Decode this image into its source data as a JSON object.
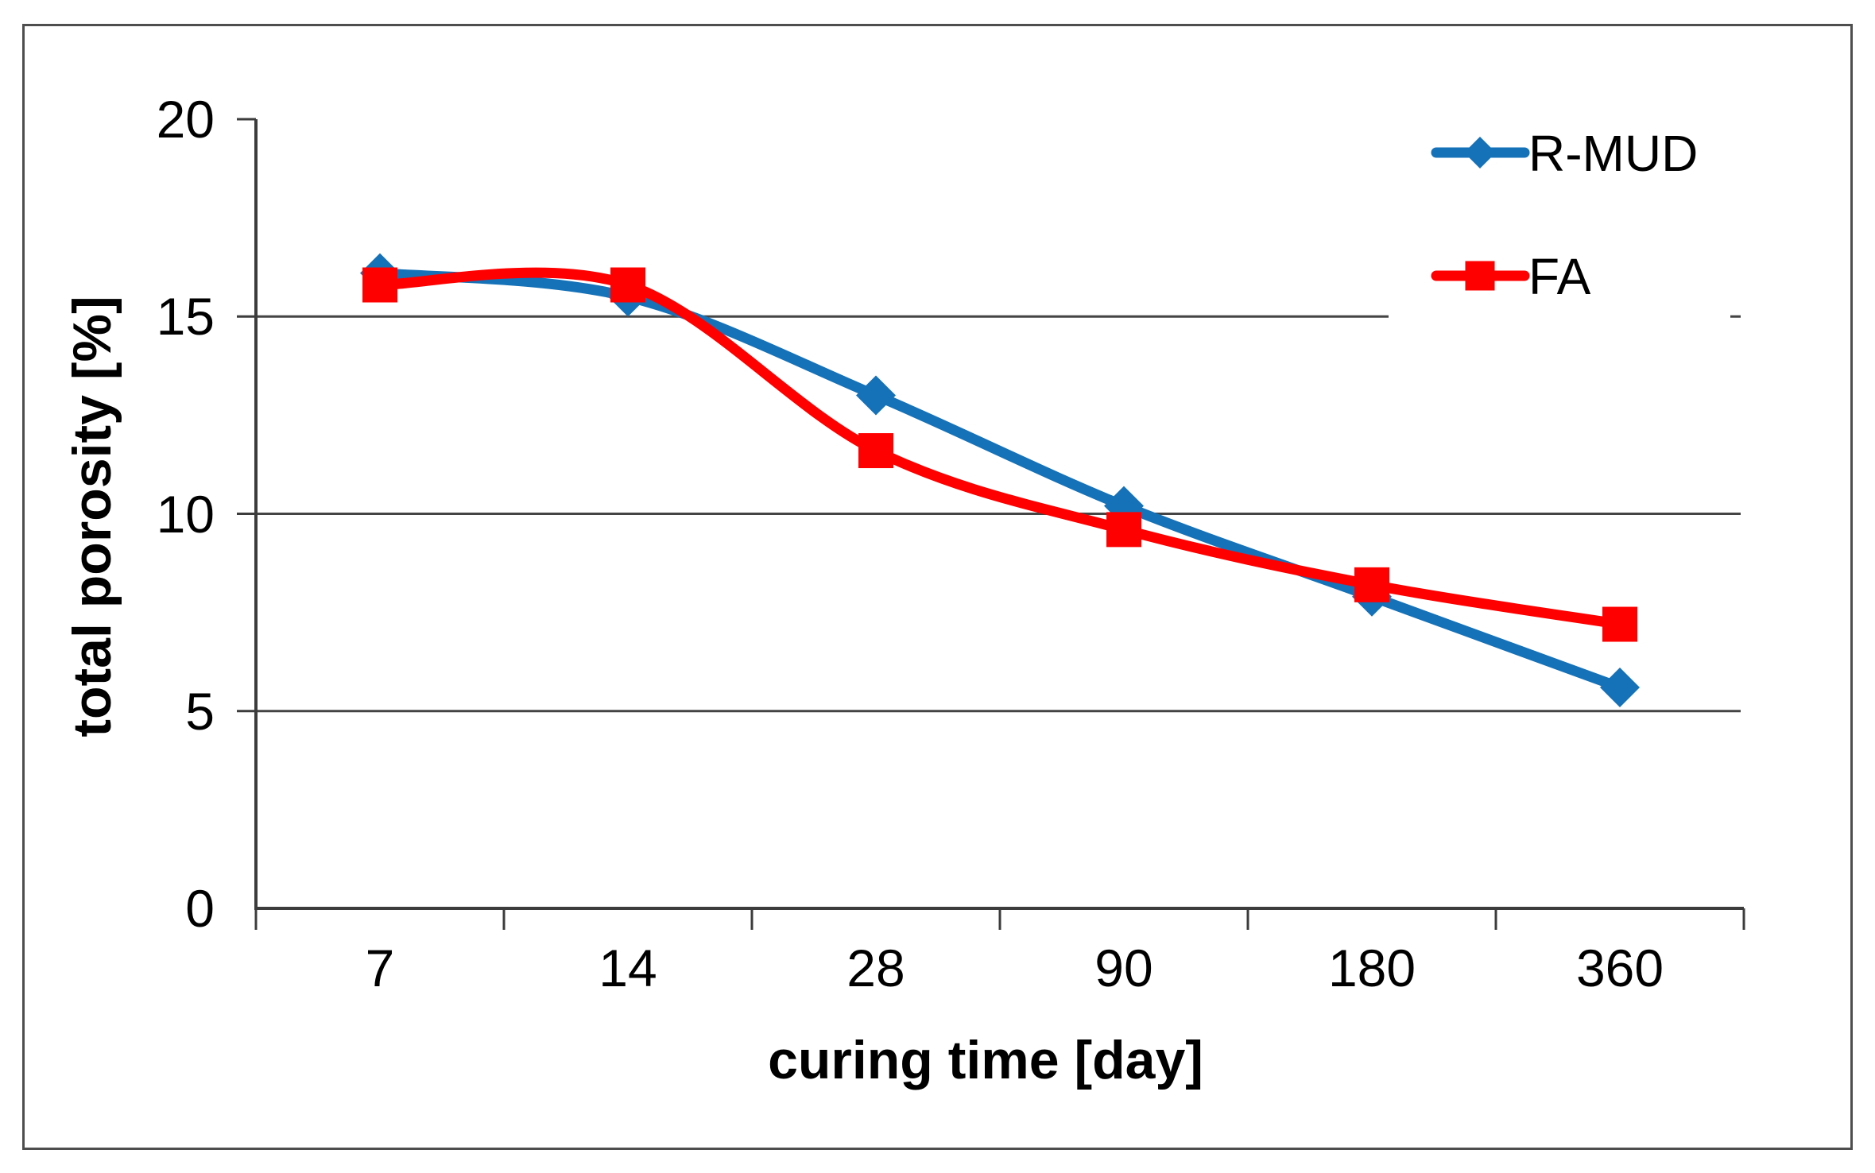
{
  "chart_data": {
    "type": "line",
    "title": "",
    "xlabel": "curing time [day]",
    "ylabel": "total porosity [%]",
    "categories": [
      "7",
      "14",
      "28",
      "90",
      "180",
      "360"
    ],
    "series": [
      {
        "name": "R-MUD",
        "color": "#1572B8",
        "marker": "diamond",
        "values": [
          16.1,
          15.5,
          13.0,
          10.2,
          7.9,
          5.6
        ]
      },
      {
        "name": "FA",
        "color": "#FF0000",
        "marker": "square",
        "values": [
          15.8,
          15.8,
          11.6,
          9.6,
          8.2,
          7.2
        ]
      }
    ],
    "y_ticks": [
      0,
      5,
      10,
      15,
      20
    ],
    "ylim": [
      0,
      20
    ],
    "grid": "horizontal gridlines at 5, 10, 15",
    "smooth_lines": true,
    "legend_position": "top-right inside plot, white background, no border",
    "style": {
      "axis_color": "#3c3c3c",
      "grid_color": "#444444",
      "frame_color": "#4e4e4e",
      "background": "#ffffff",
      "text_color": "#000000"
    }
  }
}
